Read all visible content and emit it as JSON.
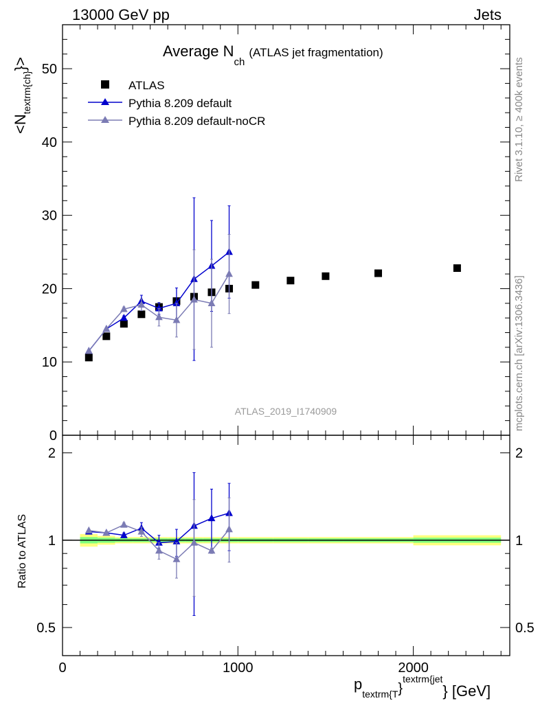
{
  "header": {
    "left": "13000 GeV pp",
    "right": "Jets"
  },
  "side_labels": {
    "rivet": "Rivet 3.1.10, ≥ 400k events",
    "mcplots": "mcplots.cern.ch [arXiv:1306.3436]"
  },
  "chart_data": [
    {
      "type": "scatter",
      "title_main": "Average N",
      "title_sub": "ch",
      "title_rest": "(ATLAS jet fragmentation)",
      "watermark": "ATLAS_2019_I1740909",
      "ylabel_main": "<N",
      "ylabel_sub": "textrm{ch}",
      "ylabel_close": "}>",
      "xlim": [
        0,
        2550
      ],
      "ylim": [
        0,
        56
      ],
      "yticks": [
        0,
        10,
        20,
        30,
        40,
        50
      ],
      "grid": false,
      "legend_position": "top-left",
      "series": [
        {
          "name": "ATLAS",
          "color": "#000000",
          "marker": "square",
          "x": [
            150,
            250,
            350,
            450,
            550,
            650,
            750,
            850,
            950,
            1100,
            1300,
            1500,
            1800,
            2250
          ],
          "y": [
            10.6,
            13.5,
            15.2,
            16.5,
            17.5,
            18.3,
            18.9,
            19.5,
            20.0,
            20.5,
            21.1,
            21.7,
            22.1,
            22.8
          ]
        },
        {
          "name": "Pythia 8.209 default",
          "color": "#0000cc",
          "marker": "triangle",
          "x": [
            150,
            250,
            350,
            450,
            550,
            650,
            750,
            850,
            950
          ],
          "y": [
            11.5,
            14.5,
            16.0,
            18.3,
            17.3,
            18.0,
            21.3,
            23.1,
            25.0
          ],
          "yerr": [
            0.1,
            0.1,
            0.3,
            0.8,
            0.8,
            2.1,
            11.1,
            6.2,
            6.3
          ]
        },
        {
          "name": "Pythia 8.209 default-noCR",
          "color": "#7b7bb4",
          "marker": "triangle",
          "x": [
            150,
            250,
            350,
            450,
            550,
            650,
            750,
            850,
            950
          ],
          "y": [
            11.5,
            14.5,
            17.2,
            17.8,
            16.1,
            15.7,
            18.5,
            18.0,
            22.0
          ],
          "yerr": [
            0.1,
            0.1,
            0.3,
            0.8,
            1.2,
            2.3,
            6.8,
            6.0,
            5.4
          ]
        }
      ]
    },
    {
      "type": "scatter",
      "ylabel": "Ratio to ATLAS",
      "xlabel_main": "p",
      "xlabel_sub": "textrm{T",
      "xlabel_close": "}",
      "xlabel_sup": "textrm{jet",
      "xlabel_rest": "} [GeV]",
      "xlim": [
        0,
        2550
      ],
      "ylim": [
        0.4,
        2.3
      ],
      "log_y": true,
      "xticks": [
        0,
        1000,
        2000
      ],
      "yticks": [
        0.5,
        1,
        2
      ],
      "grid": false,
      "band": {
        "x_edges": [
          100,
          200,
          300,
          400,
          500,
          600,
          700,
          800,
          900,
          1000,
          1200,
          1400,
          1600,
          2000,
          2500
        ],
        "inner_half": [
          0.025,
          0.02,
          0.015,
          0.015,
          0.015,
          0.015,
          0.015,
          0.015,
          0.015,
          0.015,
          0.015,
          0.015,
          0.015,
          0.02
        ],
        "outer_half": [
          0.05,
          0.035,
          0.025,
          0.025,
          0.025,
          0.025,
          0.025,
          0.025,
          0.025,
          0.025,
          0.025,
          0.025,
          0.025,
          0.04
        ],
        "inner_color": "#7fff7f",
        "outer_color": "#ffff7f"
      },
      "series": [
        {
          "name": "Pythia 8.209 default",
          "color": "#0000cc",
          "marker": "triangle",
          "x": [
            150,
            250,
            350,
            450,
            550,
            650,
            750,
            850,
            950
          ],
          "y": [
            1.07,
            1.06,
            1.04,
            1.1,
            0.98,
            0.99,
            1.12,
            1.19,
            1.24
          ],
          "ylo": [
            1.06,
            1.05,
            1.02,
            1.05,
            0.94,
            0.88,
            0.55,
            0.92,
            0.92
          ],
          "yhi": [
            1.08,
            1.07,
            1.06,
            1.15,
            1.04,
            1.09,
            1.71,
            1.5,
            1.57
          ]
        },
        {
          "name": "Pythia 8.209 default-noCR",
          "color": "#7b7bb4",
          "marker": "triangle",
          "x": [
            150,
            250,
            350,
            450,
            550,
            650,
            750,
            850,
            950
          ],
          "y": [
            1.08,
            1.06,
            1.13,
            1.07,
            0.92,
            0.86,
            0.98,
            0.92,
            1.09
          ],
          "ylo": [
            1.07,
            1.05,
            1.11,
            1.03,
            0.86,
            0.74,
            0.64,
            0.9,
            0.84
          ],
          "yhi": [
            1.09,
            1.07,
            1.15,
            1.11,
            0.98,
            0.98,
            1.38,
            0.94,
            1.4
          ]
        }
      ]
    }
  ]
}
